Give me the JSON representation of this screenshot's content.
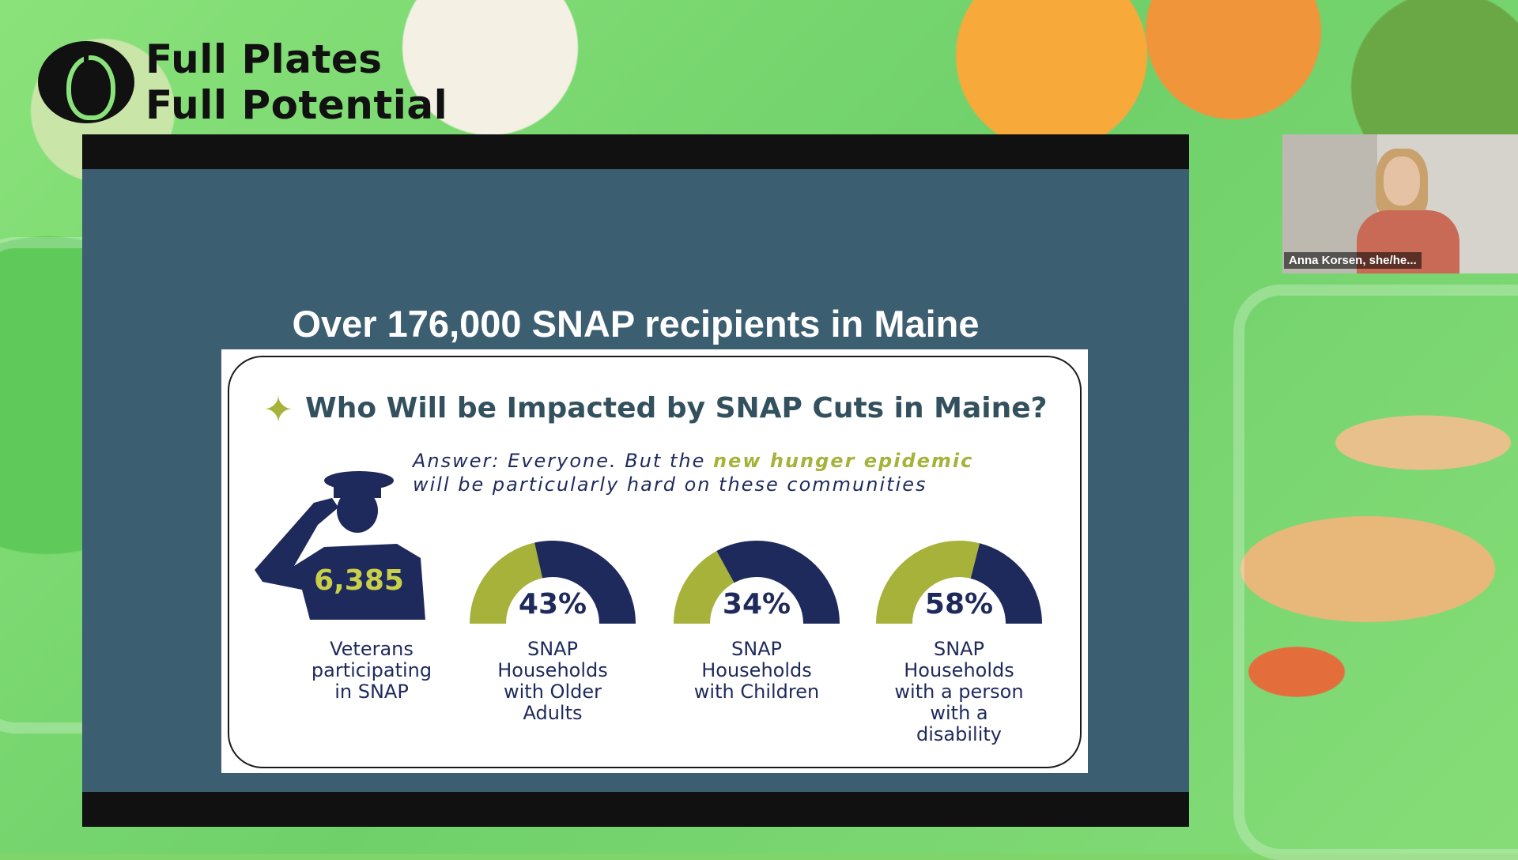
{
  "brand": {
    "line1": "Full Plates",
    "line2": "Full Potential"
  },
  "slide": {
    "title": "Over 176,000 SNAP recipients in Maine",
    "card": {
      "heading": "Who Will be Impacted by SNAP Cuts in Maine?",
      "answer_prefix": "Answer: Everyone. But the ",
      "answer_highlight": "new hunger epidemic",
      "answer_line2": "will be particularly hard on these communities",
      "veterans": {
        "number": "6,385",
        "label": [
          "Veterans",
          "participating",
          "in SNAP"
        ]
      },
      "stats": [
        {
          "percent": "43%",
          "value": 0.43,
          "label": [
            "SNAP",
            "Households",
            "with Older",
            "Adults"
          ]
        },
        {
          "percent": "34%",
          "value": 0.34,
          "label": [
            "SNAP",
            "Households",
            "with Children"
          ]
        },
        {
          "percent": "58%",
          "value": 0.58,
          "label": [
            "SNAP",
            "Households",
            "with a person",
            "with a",
            "disability"
          ]
        }
      ]
    }
  },
  "participant": {
    "name": "Anna Korsen, she/he..."
  },
  "colors": {
    "slide_bg": "#3c5e71",
    "navy": "#1f2a5c",
    "olive": "#a6b23a",
    "heading": "#33505e"
  }
}
